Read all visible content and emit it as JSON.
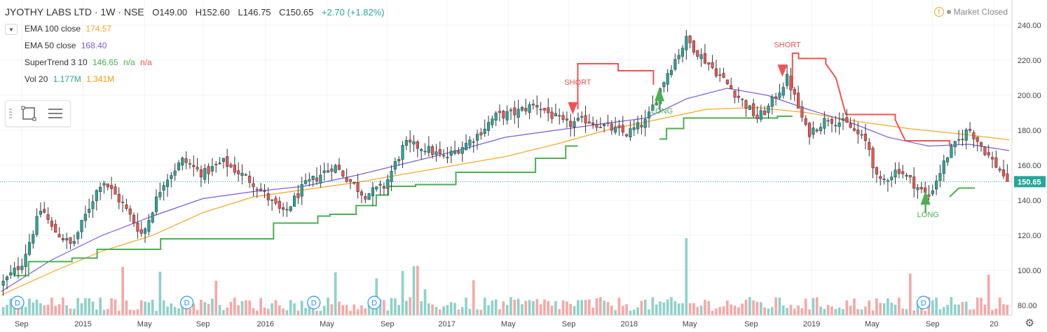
{
  "header": {
    "title": "JYOTHY LABS LTD · 1W · NSE",
    "open": "O149.00",
    "high": "H152.60",
    "low": "L146.75",
    "close": "C150.65",
    "change": "+2.70 (+1.82%)"
  },
  "market_status": "Market Closed",
  "indicators": [
    {
      "label": "EMA 100 close",
      "value": "174.57",
      "value2": "",
      "value3": "",
      "color": "#f5a623"
    },
    {
      "label": "EMA 50 close",
      "value": "168.40",
      "value2": "",
      "value3": "",
      "color": "#7b5cd6"
    },
    {
      "label": "SuperTrend 3 10",
      "value": "146.65",
      "value2": "n/a",
      "value3": "n/a",
      "color": "#4caf50",
      "color2": "#4caf50",
      "color3": "#ef5350"
    },
    {
      "label": "Vol 20",
      "value": "1.177M",
      "value2": "1.341M",
      "value3": "",
      "color": "#26a69a",
      "color2": "#ff9800"
    }
  ],
  "chart_data": {
    "type": "candlestick",
    "symbol": "JYOTHY LABS LTD",
    "interval": "1W",
    "exchange": "NSE",
    "y_axis_ticks": [
      "240.00",
      "220.00",
      "200.00",
      "180.00",
      "160.00",
      "140.00",
      "120.00",
      "100.00",
      "80.00"
    ],
    "ylim": [
      78,
      248
    ],
    "x_axis_ticks": [
      "Sep",
      "2015",
      "May",
      "Sep",
      "2016",
      "May",
      "Sep",
      "2017",
      "May",
      "Sep",
      "2018",
      "May",
      "Sep",
      "2019",
      "May",
      "Sep",
      "20"
    ],
    "last_price_label": "150.65",
    "dividend_markers": [
      "D",
      "D",
      "D",
      "D",
      "D"
    ],
    "annotations": [
      {
        "text": "SHORT",
        "type": "short",
        "t": 0.567
      },
      {
        "text": "LONG",
        "type": "long",
        "t": 0.653
      },
      {
        "text": "SHORT",
        "type": "short",
        "t": 0.775
      },
      {
        "text": "LONG",
        "type": "long",
        "t": 0.917
      }
    ],
    "colors": {
      "up": "#26a69a",
      "down": "#ef5350",
      "ema100": "#f5a623",
      "ema50": "#7b5cd6",
      "supertrend_up": "#4caf50",
      "supertrend_down": "#ef5350",
      "vol_up": "#8ed1c9",
      "vol_down": "#f4a8a6"
    },
    "price_keypoints": [
      [
        0,
        92
      ],
      [
        0.02,
        104
      ],
      [
        0.04,
        136
      ],
      [
        0.05,
        124
      ],
      [
        0.07,
        114
      ],
      [
        0.09,
        140
      ],
      [
        0.1,
        152
      ],
      [
        0.12,
        138
      ],
      [
        0.14,
        120
      ],
      [
        0.16,
        150
      ],
      [
        0.18,
        163
      ],
      [
        0.2,
        155
      ],
      [
        0.22,
        162
      ],
      [
        0.25,
        150
      ],
      [
        0.28,
        132
      ],
      [
        0.3,
        148
      ],
      [
        0.33,
        160
      ],
      [
        0.36,
        143
      ],
      [
        0.38,
        148
      ],
      [
        0.4,
        172
      ],
      [
        0.42,
        170
      ],
      [
        0.44,
        164
      ],
      [
        0.47,
        176
      ],
      [
        0.49,
        188
      ],
      [
        0.51,
        190
      ],
      [
        0.53,
        195
      ],
      [
        0.56,
        183
      ],
      [
        0.58,
        186
      ],
      [
        0.6,
        182
      ],
      [
        0.62,
        178
      ],
      [
        0.64,
        185
      ],
      [
        0.66,
        212
      ],
      [
        0.68,
        232
      ],
      [
        0.69,
        225
      ],
      [
        0.71,
        213
      ],
      [
        0.73,
        200
      ],
      [
        0.75,
        187
      ],
      [
        0.76,
        192
      ],
      [
        0.78,
        210
      ],
      [
        0.8,
        178
      ],
      [
        0.82,
        187
      ],
      [
        0.84,
        183
      ],
      [
        0.86,
        172
      ],
      [
        0.87,
        149
      ],
      [
        0.89,
        158
      ],
      [
        0.91,
        147
      ],
      [
        0.92,
        142
      ],
      [
        0.94,
        167
      ],
      [
        0.96,
        181
      ],
      [
        0.98,
        165
      ],
      [
        1.0,
        150.65
      ]
    ],
    "ema100_keypoints": [
      [
        0,
        86
      ],
      [
        0.05,
        99
      ],
      [
        0.1,
        111
      ],
      [
        0.15,
        120
      ],
      [
        0.2,
        133
      ],
      [
        0.25,
        142
      ],
      [
        0.3,
        146
      ],
      [
        0.35,
        150
      ],
      [
        0.4,
        155
      ],
      [
        0.45,
        160
      ],
      [
        0.5,
        165
      ],
      [
        0.55,
        172
      ],
      [
        0.6,
        180
      ],
      [
        0.65,
        186
      ],
      [
        0.7,
        192
      ],
      [
        0.75,
        193
      ],
      [
        0.8,
        190
      ],
      [
        0.85,
        185
      ],
      [
        0.9,
        181
      ],
      [
        0.95,
        178
      ],
      [
        1.0,
        174.57
      ]
    ],
    "ema50_keypoints": [
      [
        0,
        88
      ],
      [
        0.05,
        106
      ],
      [
        0.1,
        120
      ],
      [
        0.15,
        131
      ],
      [
        0.2,
        141
      ],
      [
        0.25,
        145
      ],
      [
        0.3,
        148
      ],
      [
        0.35,
        154
      ],
      [
        0.4,
        161
      ],
      [
        0.45,
        168
      ],
      [
        0.5,
        176
      ],
      [
        0.55,
        180
      ],
      [
        0.6,
        184
      ],
      [
        0.64,
        187
      ],
      [
        0.68,
        198
      ],
      [
        0.72,
        204
      ],
      [
        0.76,
        200
      ],
      [
        0.8,
        192
      ],
      [
        0.84,
        185
      ],
      [
        0.88,
        176
      ],
      [
        0.92,
        171
      ],
      [
        0.96,
        172
      ],
      [
        1.0,
        168.4
      ]
    ],
    "supertrend_segments": [
      {
        "dir": "up",
        "points": [
          [
            0.012,
            97
          ],
          [
            0.027,
            97
          ],
          [
            0.027,
            105
          ],
          [
            0.07,
            105
          ],
          [
            0.07,
            107
          ],
          [
            0.095,
            107
          ],
          [
            0.095,
            112
          ],
          [
            0.158,
            112
          ],
          [
            0.158,
            118
          ],
          [
            0.27,
            118
          ],
          [
            0.27,
            127
          ],
          [
            0.314,
            127
          ],
          [
            0.314,
            131
          ],
          [
            0.326,
            131
          ],
          [
            0.326,
            132
          ],
          [
            0.352,
            132
          ],
          [
            0.352,
            137
          ],
          [
            0.372,
            137
          ],
          [
            0.372,
            143
          ],
          [
            0.384,
            143
          ],
          [
            0.384,
            148
          ],
          [
            0.411,
            148
          ],
          [
            0.411,
            149
          ],
          [
            0.451,
            149
          ],
          [
            0.451,
            156
          ],
          [
            0.53,
            156
          ],
          [
            0.53,
            164
          ],
          [
            0.56,
            164
          ],
          [
            0.56,
            171
          ],
          [
            0.572,
            171
          ]
        ]
      },
      {
        "dir": "down",
        "points": [
          [
            0.572,
            192
          ],
          [
            0.572,
            218
          ],
          [
            0.612,
            218
          ],
          [
            0.612,
            214
          ],
          [
            0.647,
            214
          ],
          [
            0.647,
            206
          ]
        ]
      },
      {
        "dir": "up",
        "points": [
          [
            0.653,
            175
          ],
          [
            0.66,
            175
          ],
          [
            0.66,
            181
          ],
          [
            0.677,
            181
          ],
          [
            0.677,
            187
          ],
          [
            0.77,
            187
          ],
          [
            0.77,
            188
          ],
          [
            0.785,
            188
          ]
        ]
      },
      {
        "dir": "down",
        "points": [
          [
            0.785,
            204
          ],
          [
            0.785,
            224
          ],
          [
            0.791,
            224
          ],
          [
            0.791,
            221
          ],
          [
            0.818,
            221
          ],
          [
            0.818,
            218
          ],
          [
            0.828,
            210
          ],
          [
            0.838,
            189
          ],
          [
            0.887,
            189
          ],
          [
            0.887,
            186
          ],
          [
            0.897,
            174
          ],
          [
            0.941,
            174
          ],
          [
            0.941,
            171
          ]
        ]
      },
      {
        "dir": "up",
        "points": [
          [
            0.941,
            142
          ],
          [
            0.95,
            147
          ],
          [
            0.966,
            147
          ]
        ]
      }
    ]
  }
}
